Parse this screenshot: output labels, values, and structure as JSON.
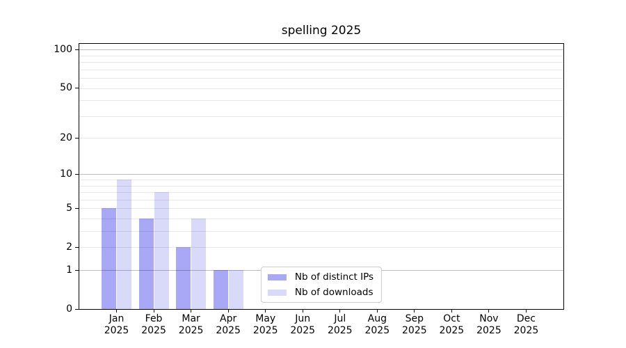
{
  "chart_data": {
    "type": "bar",
    "title": "spelling 2025",
    "categories": [
      "Jan",
      "Feb",
      "Mar",
      "Apr",
      "May",
      "Jun",
      "Jul",
      "Aug",
      "Sep",
      "Oct",
      "Nov",
      "Dec"
    ],
    "category_sub": "2025",
    "series": [
      {
        "name": "Nb of distinct IPs",
        "color": "#a8a8f7",
        "values": [
          5,
          4,
          2,
          1,
          0,
          0,
          0,
          0,
          0,
          0,
          0,
          0
        ]
      },
      {
        "name": "Nb of downloads",
        "color": "#d9d9f9",
        "values": [
          9,
          7,
          4,
          1,
          0,
          0,
          0,
          0,
          0,
          0,
          0,
          0
        ]
      }
    ],
    "yscale": "log1p",
    "ylim": [
      0,
      111
    ],
    "yticks": [
      0,
      1,
      2,
      5,
      10,
      20,
      50,
      100
    ],
    "grid": {
      "major_values": [
        1,
        10,
        100
      ],
      "minor_values": [
        2,
        3,
        4,
        5,
        6,
        7,
        8,
        9,
        20,
        30,
        40,
        50,
        60,
        70,
        80,
        90
      ],
      "major_color": "rgba(0,0,0,0.26)",
      "minor_color": "rgba(0,0,0,0.09)"
    },
    "legend_position": "lower center",
    "axis_color": "#000000",
    "background": "#ffffff"
  }
}
